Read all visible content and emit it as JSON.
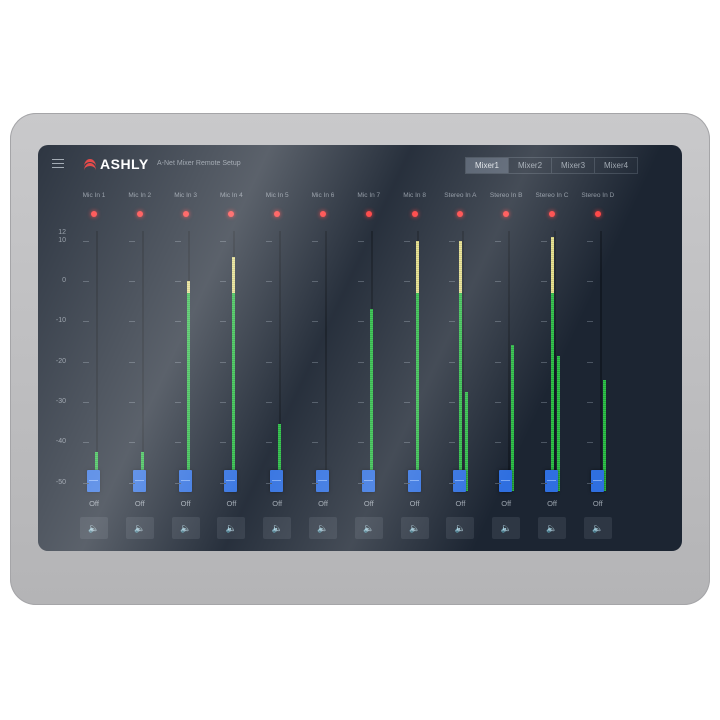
{
  "header": {
    "logo": "ASHLY",
    "subtitle": "A-Net Mixer Remote Setup",
    "menu_icon": "hamburger-icon",
    "tabs": [
      {
        "label": "Mixer1",
        "active": true
      },
      {
        "label": "Mixer2"
      },
      {
        "label": "Mixer3"
      },
      {
        "label": "Mixer4"
      }
    ]
  },
  "scale": [
    "12",
    "10",
    "0",
    "-10",
    "-20",
    "-30",
    "-40",
    "-50"
  ],
  "colors": {
    "meter_green": "#2fc44a",
    "meter_yellow": "#e6e08a",
    "fader": "#2f6fe0",
    "clip_led": "#ff4040"
  },
  "channels": [
    {
      "name": "Mic In 1",
      "levels_db": [
        -42.5
      ],
      "state": "Off"
    },
    {
      "name": "Mic In 2",
      "levels_db": [
        -42.5
      ],
      "state": "Off"
    },
    {
      "name": "Mic In 3",
      "levels_db": [
        0
      ],
      "state": "Off"
    },
    {
      "name": "Mic In 4",
      "levels_db": [
        6
      ],
      "state": "Off"
    },
    {
      "name": "Mic In 5",
      "levels_db": [
        -35.5
      ],
      "state": "Off"
    },
    {
      "name": "Mic In 6",
      "levels_db": [],
      "state": "Off"
    },
    {
      "name": "Mic In 7",
      "levels_db": [
        -7
      ],
      "state": "Off"
    },
    {
      "name": "Mic In 8",
      "levels_db": [
        10
      ],
      "state": "Off"
    },
    {
      "name": "Stereo In A",
      "levels_db": [
        10,
        -27.5
      ],
      "state": "Off"
    },
    {
      "name": "Stereo In B",
      "levels_db": [
        null,
        -16
      ],
      "state": "Off"
    },
    {
      "name": "Stereo In C",
      "levels_db": [
        11,
        -18.5
      ],
      "state": "Off"
    },
    {
      "name": "Stereo In D",
      "levels_db": [
        null,
        -24.5
      ],
      "state": "Off"
    }
  ],
  "fader_level_db": -50
}
